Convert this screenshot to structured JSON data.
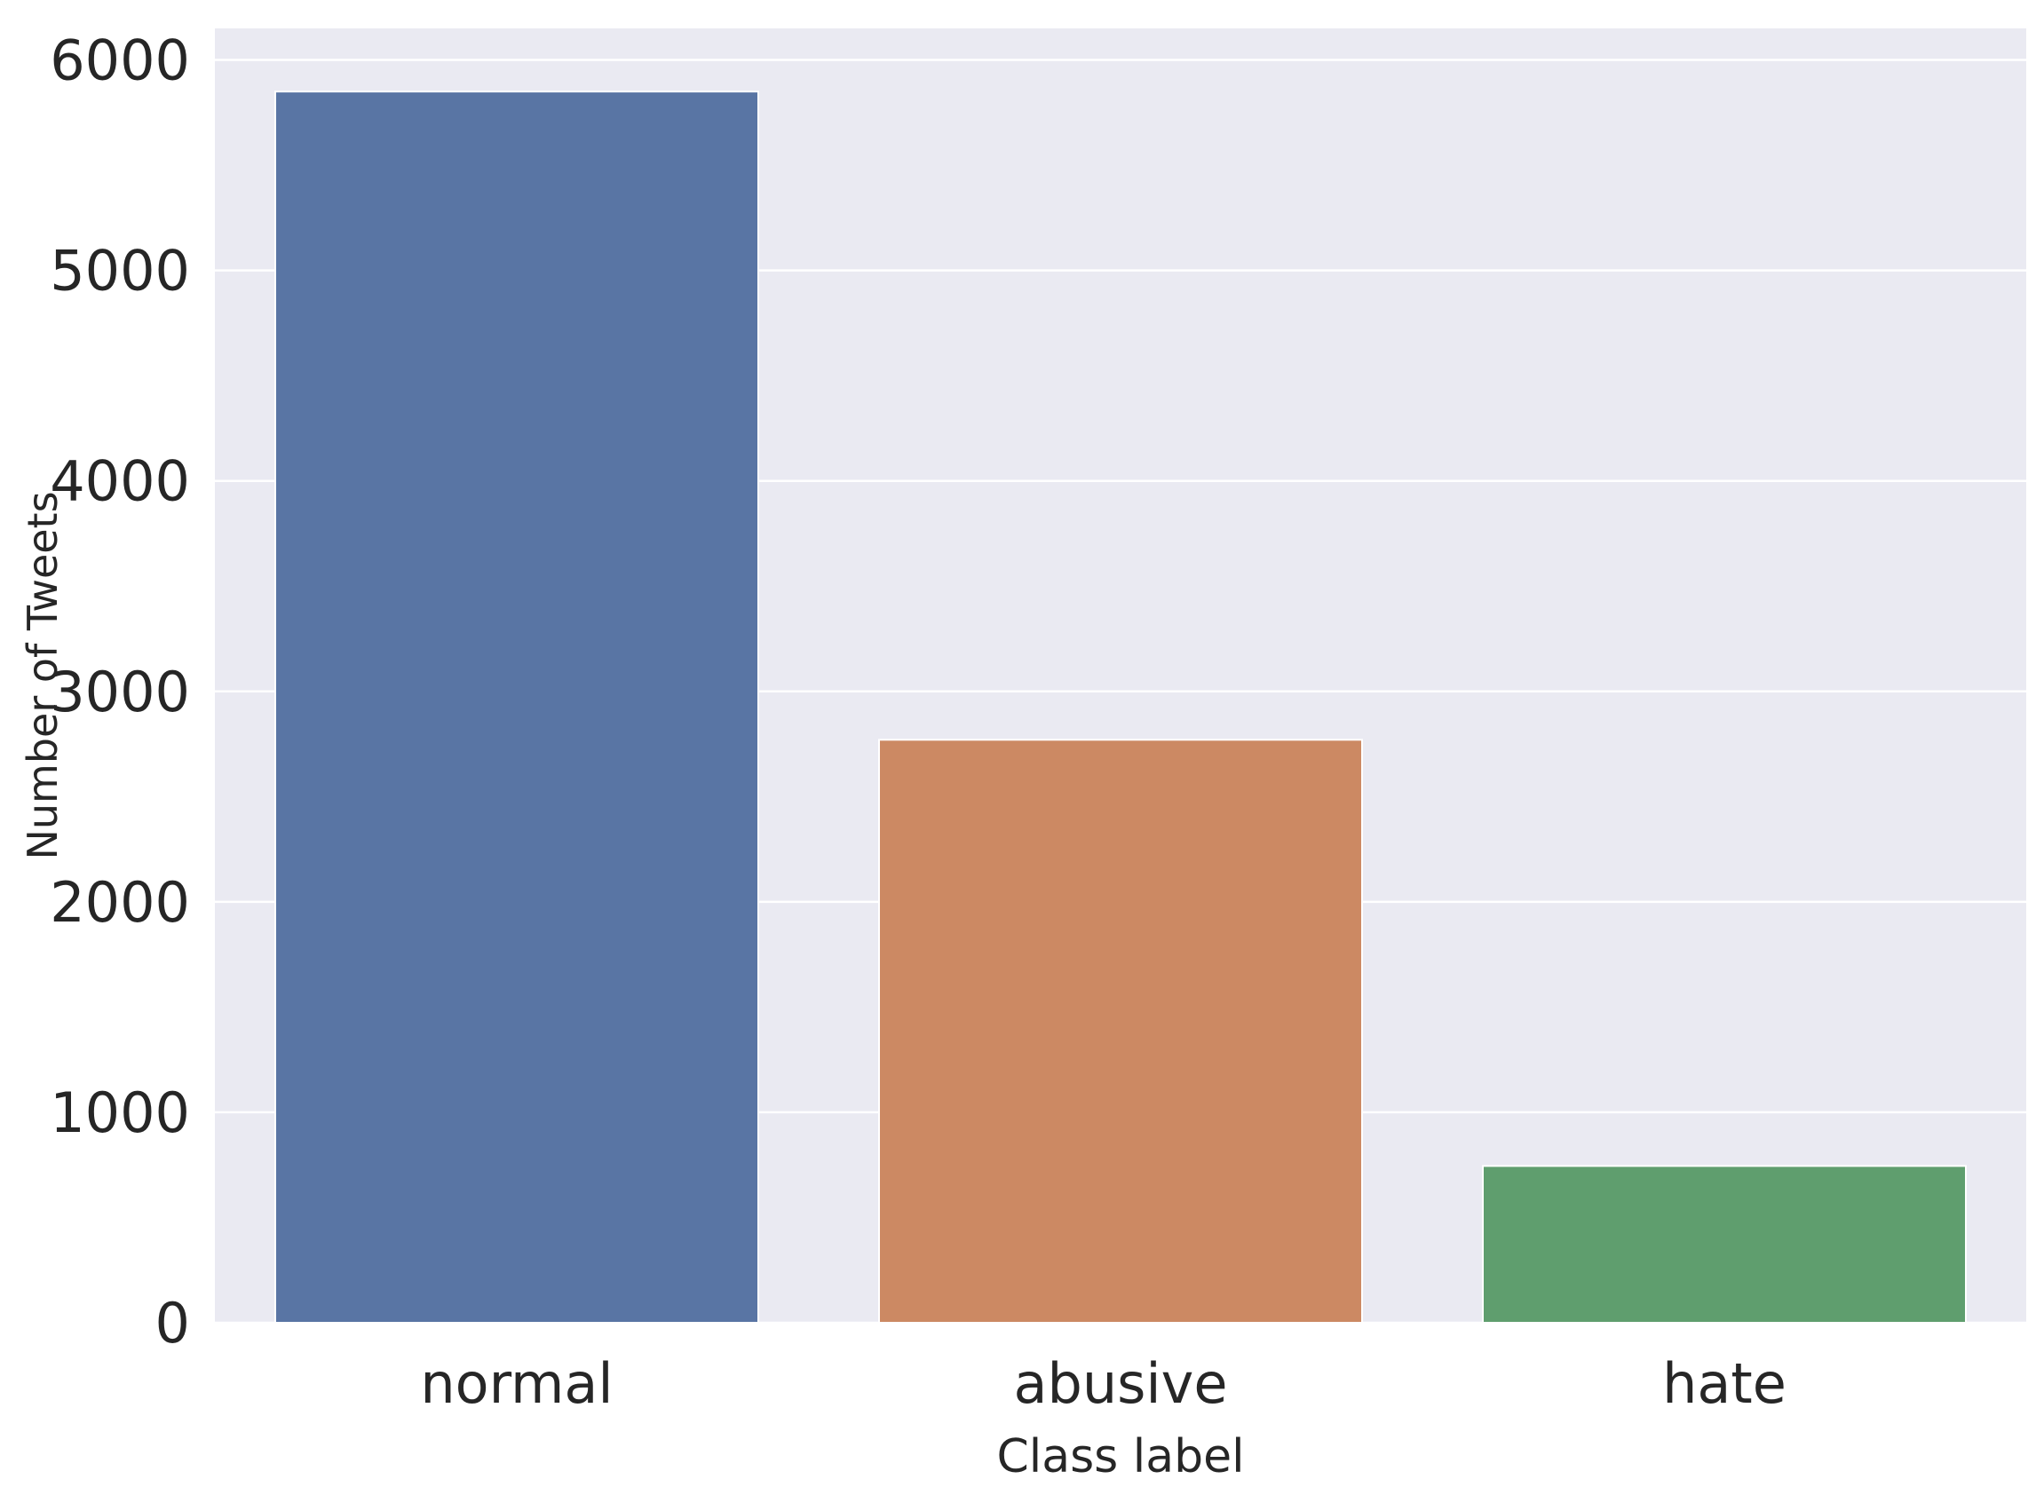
{
  "chart_data": {
    "type": "bar",
    "categories": [
      "normal",
      "abusive",
      "hate"
    ],
    "values": [
      5850,
      2770,
      745
    ],
    "xlabel": "Class label",
    "ylabel": "Number of Tweets",
    "ylim": [
      0,
      6150
    ],
    "yticks": [
      0,
      1000,
      2000,
      3000,
      4000,
      5000,
      6000
    ],
    "grid": true,
    "legend": "none",
    "colors": [
      "#5975a4",
      "#cc8963",
      "#5f9e6e"
    ],
    "background": "#eaeaf2",
    "gridcolor": "#ffffff"
  }
}
